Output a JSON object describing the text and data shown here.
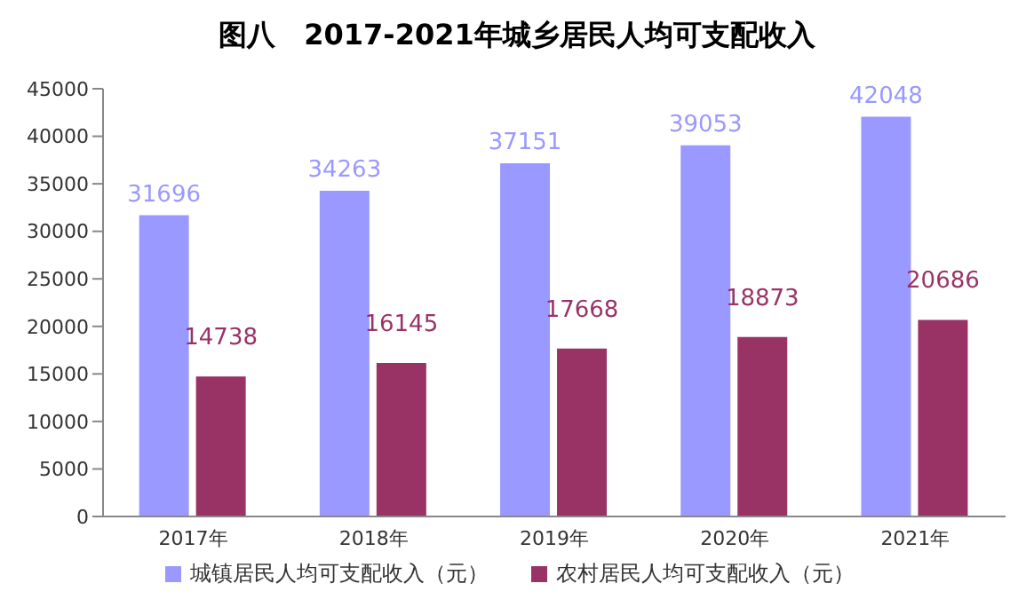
{
  "chart_data": {
    "type": "bar",
    "title": "图八　2017-2021年城乡居民人均可支配收入",
    "categories": [
      "2017年",
      "2018年",
      "2019年",
      "2020年",
      "2021年"
    ],
    "series": [
      {
        "name": "城镇居民人均可支配收入（元）",
        "color": "#9999ff",
        "values": [
          31696,
          34263,
          37151,
          39053,
          42048
        ]
      },
      {
        "name": "农村居民人均可支配收入（元）",
        "color": "#993366",
        "values": [
          14738,
          16145,
          17668,
          18873,
          20686
        ]
      }
    ],
    "ylim": [
      0,
      45000
    ],
    "yticks": [
      0,
      5000,
      10000,
      15000,
      20000,
      25000,
      30000,
      35000,
      40000,
      45000
    ],
    "data_labels": true,
    "legend": "bottom"
  }
}
